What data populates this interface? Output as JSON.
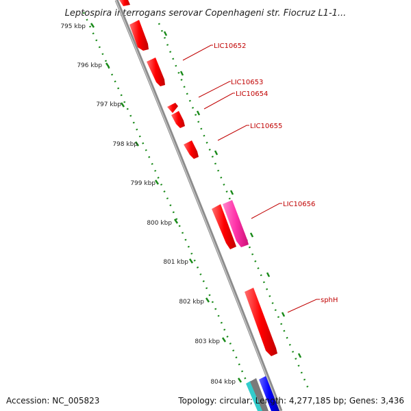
{
  "map": {
    "title": "Leptospira interrogans serovar Copenhageni str. Fiocruz L1-1...",
    "kbp_ticks": [
      "795 kbp",
      "796 kbp",
      "797 kbp",
      "798 kbp",
      "799 kbp",
      "800 kbp",
      "801 kbp",
      "802 kbp",
      "803 kbp",
      "804 kbp"
    ],
    "gene_labels": [
      "LIC10652",
      "LIC10653",
      "LIC10654",
      "LIC10655",
      "LIC10656",
      "sphH"
    ],
    "colors": {
      "backbone": "#8c8c8c",
      "ticks": "#1a8a1a",
      "gene_forward": "#ff0000",
      "gene_highlight": "#ff33aa",
      "gene_blue": "#0000ff",
      "gene_cyan": "#33cccc",
      "label": "#c00000"
    }
  },
  "footer": {
    "accession": "Accession: NC_005823",
    "topology": "Topology: circular; Length: 4,277,185 bp; Genes: 3,436"
  }
}
